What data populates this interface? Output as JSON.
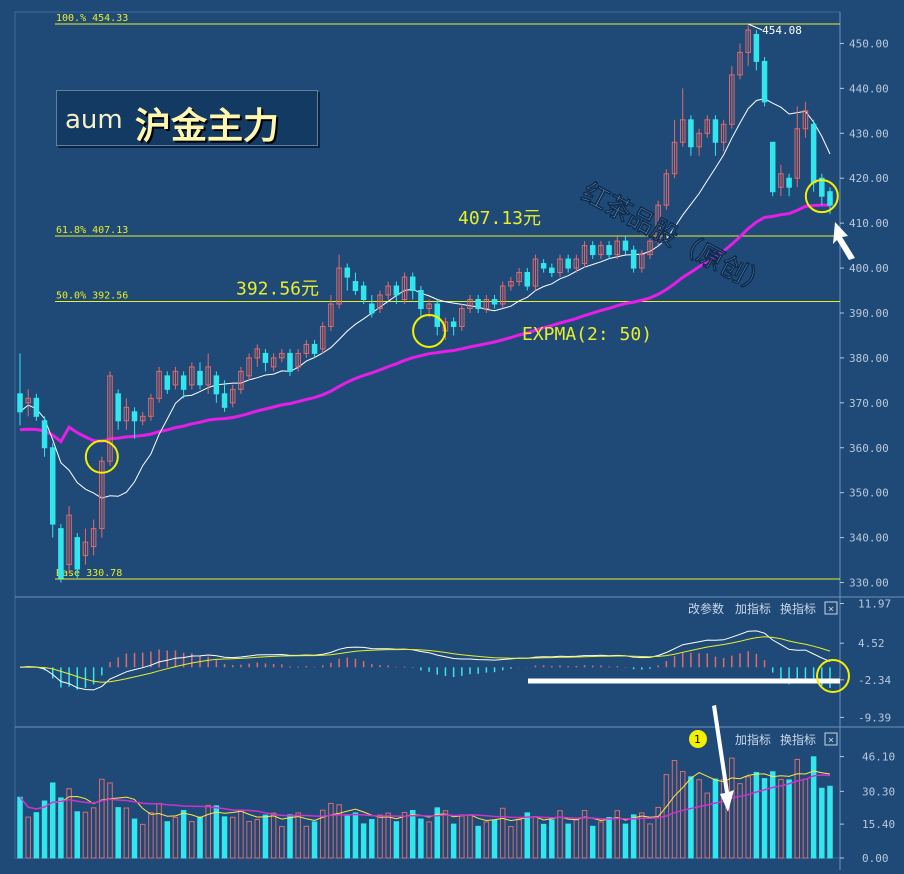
{
  "title": {
    "code": "aum",
    "name": "沪金主力"
  },
  "watermark": "红茶品股（原创）",
  "colors": {
    "background": "#1f4a78",
    "up": "#e06a6a",
    "down": "#33e6ee",
    "expma": "#e61ee6",
    "ma": "#ffffff",
    "fib_line": "#e8ee2a",
    "grid": "#2f5a88",
    "axis_text": "#b8c8dc",
    "circle": "#f4f000",
    "volume_ma_short": "#ffe840",
    "volume_ma_long": "#cc33cc"
  },
  "chart_data": [
    {
      "type": "candlestick",
      "panel": "price",
      "y_ticks": [
        "450.00",
        "440.00",
        "430.00",
        "420.00",
        "410.00",
        "400.00",
        "390.00",
        "380.00",
        "370.00",
        "360.00",
        "350.00",
        "340.00",
        "330.00"
      ],
      "ylim": [
        327,
        457
      ],
      "fibonacci": [
        {
          "label": "100.% 454.33",
          "value": 454.33
        },
        {
          "label": "61.8% 407.13",
          "value": 407.13
        },
        {
          "label": "50.0% 392.56",
          "value": 392.56
        },
        {
          "label": "Base  330.78",
          "value": 330.78
        }
      ],
      "annotations": {
        "peak": "454.08",
        "price_1": "392.56元",
        "price_2": "407.13元",
        "expma_label": "EXPMA(2: 50)"
      },
      "candles": [
        [
          372,
          368,
          381,
          365
        ],
        [
          370,
          371,
          373,
          367
        ],
        [
          371,
          367,
          372,
          366
        ],
        [
          366,
          360,
          367,
          358
        ],
        [
          360,
          343,
          361,
          340
        ],
        [
          342,
          331,
          343,
          330
        ],
        [
          334,
          345,
          347,
          332
        ],
        [
          340,
          333,
          341,
          331
        ],
        [
          336,
          339,
          342,
          334
        ],
        [
          338,
          342,
          344,
          336
        ],
        [
          342,
          357,
          358,
          340
        ],
        [
          357,
          376,
          377,
          356
        ],
        [
          372,
          366,
          373,
          364
        ],
        [
          366,
          369,
          371,
          364
        ],
        [
          368,
          366,
          369,
          362
        ],
        [
          366,
          367,
          368,
          365
        ],
        [
          367,
          371,
          372,
          366
        ],
        [
          371,
          377,
          378,
          370
        ],
        [
          376,
          373,
          377,
          372
        ],
        [
          374,
          377,
          378,
          373
        ],
        [
          376,
          373,
          377,
          371
        ],
        [
          374,
          378,
          379,
          373
        ],
        [
          377,
          374,
          379,
          373
        ],
        [
          374,
          378,
          381,
          372
        ],
        [
          376,
          372,
          377,
          370
        ],
        [
          372,
          369,
          375,
          368
        ],
        [
          370,
          373,
          374,
          369
        ],
        [
          373,
          377,
          378,
          372
        ],
        [
          376,
          380,
          381,
          375
        ],
        [
          380,
          382,
          383,
          378
        ],
        [
          381,
          379,
          382,
          377
        ],
        [
          378,
          380,
          381,
          377
        ],
        [
          380,
          381,
          382,
          379
        ],
        [
          381,
          377,
          382,
          376
        ],
        [
          378,
          381,
          382,
          377
        ],
        [
          381,
          383,
          384,
          380
        ],
        [
          383,
          381,
          384,
          380
        ],
        [
          382,
          387,
          388,
          381
        ],
        [
          387,
          392,
          394,
          386
        ],
        [
          392,
          400,
          403,
          391
        ],
        [
          400,
          398,
          401,
          395
        ],
        [
          397,
          395,
          399,
          394
        ],
        [
          396,
          393,
          397,
          392
        ],
        [
          392,
          390,
          394,
          389
        ],
        [
          391,
          394,
          395,
          390
        ],
        [
          394,
          396,
          397,
          393
        ],
        [
          396,
          394,
          397,
          392
        ],
        [
          393,
          398,
          399,
          392
        ],
        [
          398,
          395,
          399,
          393
        ],
        [
          395,
          391,
          396,
          389
        ],
        [
          391,
          392,
          393,
          389
        ],
        [
          392,
          387,
          393,
          385
        ],
        [
          386,
          388,
          389,
          384
        ],
        [
          388,
          387,
          389,
          385
        ],
        [
          387,
          391,
          392,
          386
        ],
        [
          391,
          393,
          394,
          390
        ],
        [
          393,
          391,
          394,
          390
        ],
        [
          391,
          393,
          394,
          390
        ],
        [
          393,
          392,
          394,
          391
        ],
        [
          392,
          396,
          397,
          391
        ],
        [
          396,
          397,
          398,
          395
        ],
        [
          397,
          399,
          400,
          396
        ],
        [
          399,
          396,
          400,
          395
        ],
        [
          396,
          402,
          403,
          395
        ],
        [
          401,
          400,
          402,
          399
        ],
        [
          400,
          399,
          401,
          398
        ],
        [
          399,
          402,
          403,
          398
        ],
        [
          402,
          400,
          403,
          399
        ],
        [
          400,
          402,
          403,
          399
        ],
        [
          401,
          405,
          406,
          400
        ],
        [
          405,
          403,
          406,
          402
        ],
        [
          403,
          405,
          406,
          402
        ],
        [
          405,
          403,
          406,
          402
        ],
        [
          403,
          406,
          407,
          402
        ],
        [
          406,
          404,
          407,
          403
        ],
        [
          404,
          400,
          405,
          399
        ],
        [
          400,
          403,
          404,
          399
        ],
        [
          403,
          406,
          407,
          402
        ],
        [
          406,
          414,
          415,
          405
        ],
        [
          414,
          421,
          422,
          413
        ],
        [
          421,
          428,
          433,
          420
        ],
        [
          428,
          433,
          440,
          427
        ],
        [
          433,
          427,
          434,
          425
        ],
        [
          427,
          430,
          431,
          425
        ],
        [
          430,
          433,
          434,
          429
        ],
        [
          433,
          428,
          434,
          425
        ],
        [
          428,
          432,
          433,
          426
        ],
        [
          432,
          443,
          445,
          431
        ],
        [
          443,
          448,
          450,
          442
        ],
        [
          448,
          453,
          454,
          445
        ],
        [
          452,
          446,
          453,
          444
        ],
        [
          446,
          437,
          447,
          436
        ],
        [
          428,
          417,
          428,
          416
        ],
        [
          418,
          421,
          423,
          416
        ],
        [
          420,
          418,
          421,
          416
        ],
        [
          420,
          431,
          436,
          418
        ],
        [
          431,
          435,
          437,
          429
        ],
        [
          432,
          419,
          433,
          417
        ],
        [
          420,
          416,
          421,
          414
        ],
        [
          417,
          414,
          418,
          412
        ]
      ]
    },
    {
      "type": "macd",
      "panel": "indicator",
      "toolbar": [
        "改参数",
        "加指标",
        "换指标"
      ],
      "y_ticks": [
        "11.97",
        "4.52",
        "-2.34",
        "-9.39"
      ],
      "ylim": [
        -11,
        13
      ]
    },
    {
      "type": "bar",
      "panel": "volume",
      "toolbar": [
        "加指标",
        "换指标"
      ],
      "marker": "1",
      "y_ticks": [
        "46.10",
        "30.30",
        "15.40",
        "0.00"
      ],
      "ylim": [
        0,
        50
      ]
    }
  ]
}
